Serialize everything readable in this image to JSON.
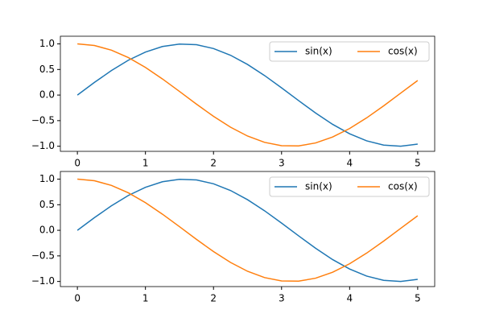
{
  "chart_data": [
    {
      "type": "line",
      "x": [
        0,
        0.25,
        0.5,
        0.75,
        1,
        1.25,
        1.5,
        1.75,
        2,
        2.25,
        2.5,
        2.75,
        3,
        3.25,
        3.5,
        3.75,
        4,
        4.25,
        4.5,
        4.75,
        5
      ],
      "series": [
        {
          "name": "sin(x)",
          "color": "#1f77b4",
          "values": [
            0,
            0.247,
            0.479,
            0.682,
            0.841,
            0.949,
            0.997,
            0.984,
            0.909,
            0.778,
            0.598,
            0.382,
            0.141,
            -0.108,
            -0.351,
            -0.572,
            -0.757,
            -0.895,
            -0.978,
            -0.999,
            -0.959
          ]
        },
        {
          "name": "cos(x)",
          "color": "#ff7f0e",
          "values": [
            1,
            0.969,
            0.878,
            0.732,
            0.54,
            0.315,
            0.071,
            -0.178,
            -0.416,
            -0.628,
            -0.801,
            -0.924,
            -0.99,
            -0.994,
            -0.936,
            -0.82,
            -0.654,
            -0.446,
            -0.211,
            0.038,
            0.284
          ]
        }
      ],
      "xlim": [
        -0.25,
        5.25
      ],
      "xticks": [
        0,
        1,
        2,
        3,
        4,
        5
      ],
      "ylim": [
        -1.1,
        1.15
      ],
      "yticks": [
        {
          "value": -1,
          "label": "−1.0"
        },
        {
          "value": -0.5,
          "label": "−0.5"
        },
        {
          "value": 0,
          "label": "0.0"
        },
        {
          "value": 0.5,
          "label": "0.5"
        },
        {
          "value": 1,
          "label": "1.0"
        }
      ],
      "legend": "upper right"
    },
    {
      "type": "line",
      "x": [
        0,
        0.25,
        0.5,
        0.75,
        1,
        1.25,
        1.5,
        1.75,
        2,
        2.25,
        2.5,
        2.75,
        3,
        3.25,
        3.5,
        3.75,
        4,
        4.25,
        4.5,
        4.75,
        5
      ],
      "series": [
        {
          "name": "sin(x)",
          "color": "#1f77b4",
          "values": [
            0,
            0.247,
            0.479,
            0.682,
            0.841,
            0.949,
            0.997,
            0.984,
            0.909,
            0.778,
            0.598,
            0.382,
            0.141,
            -0.108,
            -0.351,
            -0.572,
            -0.757,
            -0.895,
            -0.978,
            -0.999,
            -0.959
          ]
        },
        {
          "name": "cos(x)",
          "color": "#ff7f0e",
          "values": [
            1,
            0.969,
            0.878,
            0.732,
            0.54,
            0.315,
            0.071,
            -0.178,
            -0.416,
            -0.628,
            -0.801,
            -0.924,
            -0.99,
            -0.994,
            -0.936,
            -0.82,
            -0.654,
            -0.446,
            -0.211,
            0.038,
            0.284
          ]
        }
      ],
      "xlim": [
        -0.25,
        5.25
      ],
      "xticks": [
        0,
        1,
        2,
        3,
        4,
        5
      ],
      "ylim": [
        -1.1,
        1.15
      ],
      "yticks": [
        {
          "value": -1,
          "label": "−1.0"
        },
        {
          "value": -0.5,
          "label": "−0.5"
        },
        {
          "value": 0,
          "label": "0.0"
        },
        {
          "value": 0.5,
          "label": "0.5"
        },
        {
          "value": 1,
          "label": "1.0"
        }
      ],
      "legend": "upper right"
    }
  ]
}
